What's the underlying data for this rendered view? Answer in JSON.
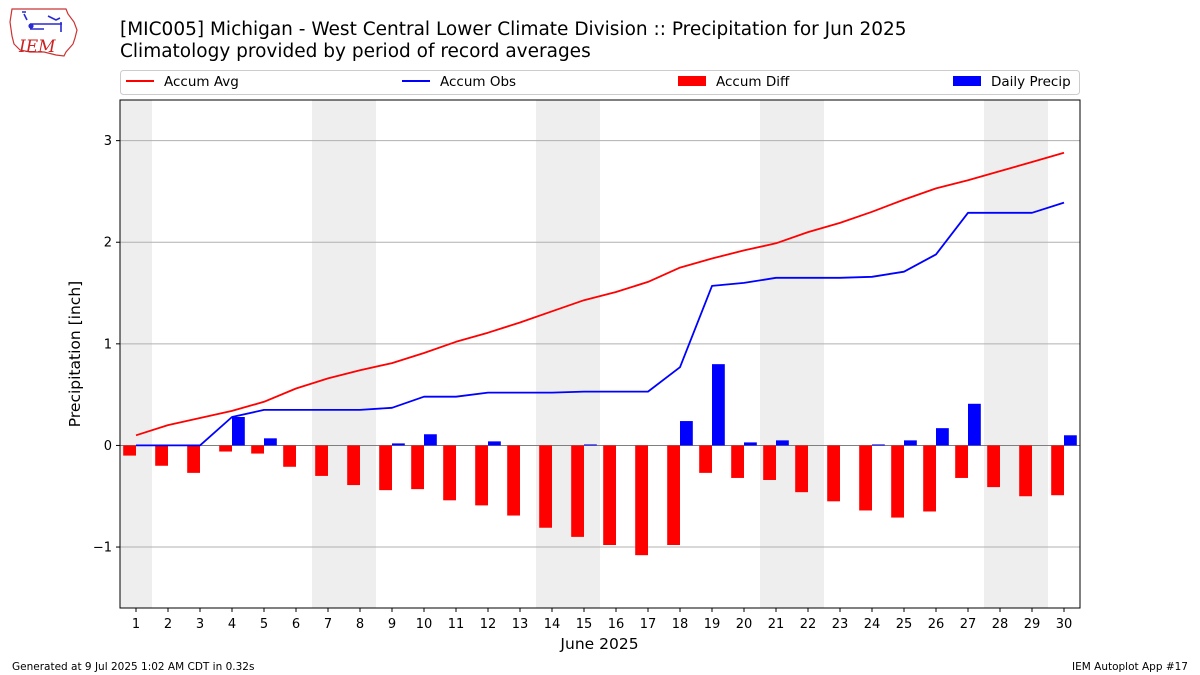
{
  "chart_data": {
    "type": "bar",
    "title": "[MIC005] Michigan - West Central Lower Climate Division :: Precipitation for Jun 2025",
    "subtitle": "Climatology provided by period of record averages",
    "xlabel": "June 2025",
    "ylabel": "Precipitation [inch]",
    "ylim": [
      -1.6,
      3.4
    ],
    "yticks": [
      -1,
      0,
      1,
      2,
      3
    ],
    "ytick_labels": [
      "−1",
      "0",
      "1",
      "2",
      "3"
    ],
    "grid": "horizontal",
    "legend_placement": "top",
    "weekend_shading": [
      [
        1,
        1
      ],
      [
        7,
        8
      ],
      [
        14,
        15
      ],
      [
        21,
        22
      ],
      [
        28,
        29
      ]
    ],
    "x": [
      1,
      2,
      3,
      4,
      5,
      6,
      7,
      8,
      9,
      10,
      11,
      12,
      13,
      14,
      15,
      16,
      17,
      18,
      19,
      20,
      21,
      22,
      23,
      24,
      25,
      26,
      27,
      28,
      29,
      30
    ],
    "series": [
      {
        "name": "Accum Avg",
        "kind": "line",
        "color": "#ff0000",
        "values": [
          0.1,
          0.2,
          0.27,
          0.34,
          0.43,
          0.56,
          0.66,
          0.74,
          0.81,
          0.91,
          1.02,
          1.11,
          1.21,
          1.32,
          1.43,
          1.51,
          1.61,
          1.75,
          1.84,
          1.92,
          1.99,
          2.1,
          2.19,
          2.3,
          2.42,
          2.53,
          2.61,
          2.7,
          2.79,
          2.88
        ]
      },
      {
        "name": "Accum Obs",
        "kind": "line",
        "color": "#0000ff",
        "values": [
          0.0,
          0.0,
          0.0,
          0.28,
          0.35,
          0.35,
          0.35,
          0.35,
          0.37,
          0.48,
          0.48,
          0.52,
          0.52,
          0.52,
          0.53,
          0.53,
          0.53,
          0.77,
          1.57,
          1.6,
          1.65,
          1.65,
          1.65,
          1.66,
          1.71,
          1.88,
          2.29,
          2.29,
          2.29,
          2.39
        ]
      },
      {
        "name": "Accum Diff",
        "kind": "bar",
        "color": "#ff0000",
        "values": [
          -0.1,
          -0.2,
          -0.27,
          -0.06,
          -0.08,
          -0.21,
          -0.3,
          -0.39,
          -0.44,
          -0.43,
          -0.54,
          -0.59,
          -0.69,
          -0.81,
          -0.9,
          -0.98,
          -1.08,
          -0.98,
          -0.27,
          -0.32,
          -0.34,
          -0.46,
          -0.55,
          -0.64,
          -0.71,
          -0.65,
          -0.32,
          -0.41,
          -0.5,
          -0.49
        ]
      },
      {
        "name": "Daily Precip",
        "kind": "bar",
        "color": "#0000ff",
        "values": [
          0.0,
          0.0,
          0.0,
          0.28,
          0.07,
          0.0,
          0.0,
          0.0,
          0.02,
          0.11,
          0.0,
          0.04,
          0.0,
          0.0,
          0.01,
          0.0,
          0.0,
          0.24,
          0.8,
          0.03,
          0.05,
          0.0,
          0.0,
          0.01,
          0.05,
          0.17,
          0.41,
          0.0,
          0.0,
          0.1
        ]
      }
    ]
  },
  "logo": {
    "text": "IEM"
  },
  "footer": {
    "left": "Generated at 9 Jul 2025 1:02 AM CDT in 0.32s",
    "right": "IEM Autoplot App #17"
  }
}
